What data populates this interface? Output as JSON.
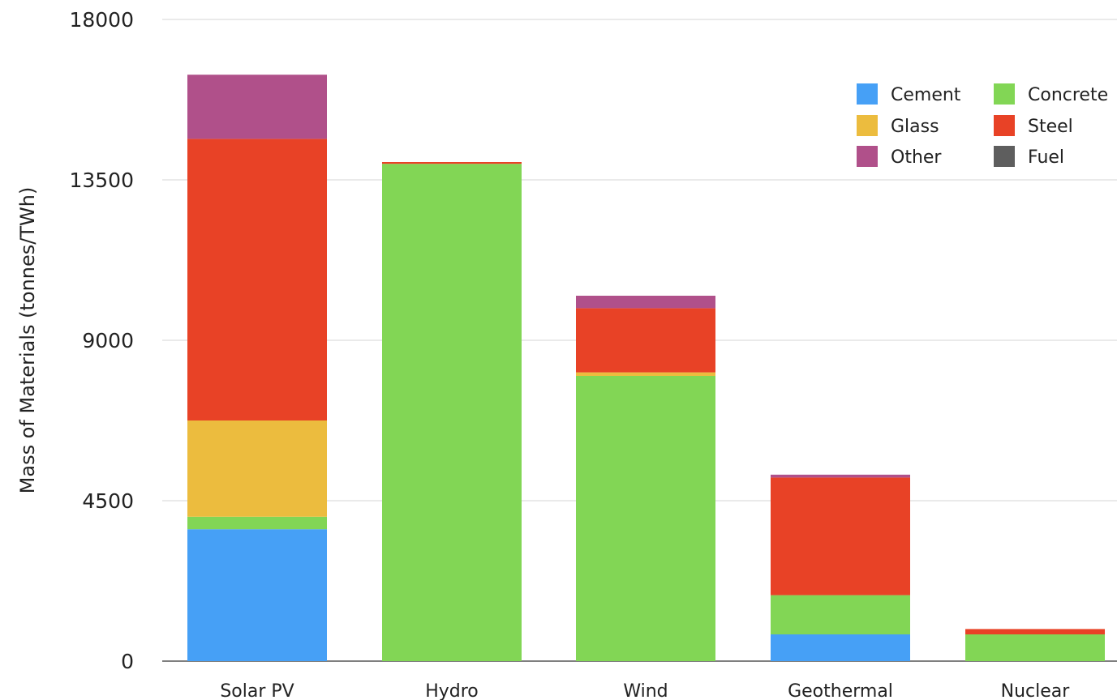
{
  "chart_data": {
    "type": "bar",
    "stacked": true,
    "title": "",
    "xlabel": "",
    "ylabel": "Mass of Materials (tonnes/TWh)",
    "ylim": [
      0,
      18000
    ],
    "yticks": [
      0,
      4500,
      9000,
      13500,
      18000
    ],
    "grid": true,
    "legend_position": "top-right",
    "categories": [
      "Solar PV",
      "Hydro",
      "Wind",
      "Geothermal",
      "Nuclear"
    ],
    "series": [
      {
        "name": "Cement",
        "color": "#46a0f6",
        "values": [
          3700,
          0,
          0,
          750,
          0
        ]
      },
      {
        "name": "Concrete",
        "color": "#82d655",
        "values": [
          350,
          13950,
          8000,
          1100,
          750
        ]
      },
      {
        "name": "Glass",
        "color": "#ecbc3e",
        "values": [
          2700,
          0,
          100,
          0,
          0
        ]
      },
      {
        "name": "Steel",
        "color": "#e84226",
        "values": [
          7900,
          50,
          1800,
          3300,
          150
        ]
      },
      {
        "name": "Other",
        "color": "#b0508a",
        "values": [
          1800,
          0,
          350,
          80,
          0
        ]
      },
      {
        "name": "Fuel",
        "color": "#5e5e5e",
        "values": [
          0,
          0,
          0,
          0,
          0
        ]
      }
    ],
    "legend_order": [
      "Cement",
      "Concrete",
      "Glass",
      "Steel",
      "Other",
      "Fuel"
    ]
  }
}
